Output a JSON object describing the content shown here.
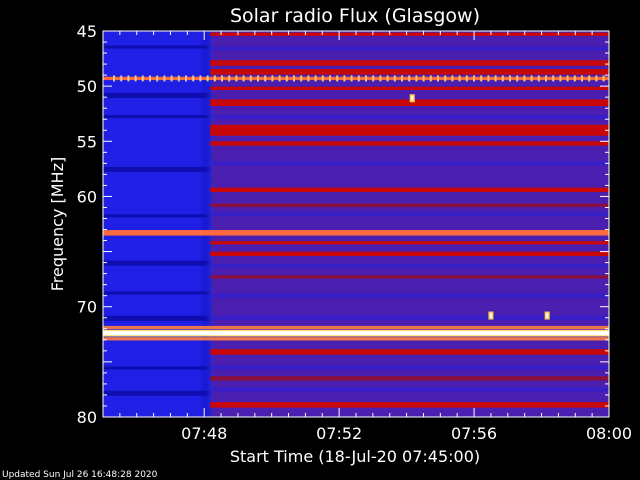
{
  "chart_data": {
    "type": "heatmap",
    "title": "Solar radio Flux (Glasgow)",
    "xlabel": "Start Time (18-Jul-20 07:45:00)",
    "ylabel": "Frequency [MHz]",
    "x_range": [
      "07:45",
      "08:00"
    ],
    "y_range_mhz": [
      45,
      80
    ],
    "y_reversed": true,
    "x_tick_labels": [
      "07:48",
      "07:52",
      "07:56",
      "08:00"
    ],
    "y_tick_labels": [
      "45",
      "50",
      "55",
      "60",
      "70",
      "80"
    ],
    "colorscale": [
      "#000080",
      "#1f1fe6",
      "#4a1fb0",
      "#8a0f3c",
      "#c00000",
      "#ff5030",
      "#ffd060",
      "#ffffff"
    ],
    "activity_onset_time": "07:48",
    "emission_bands_mhz": [
      {
        "center": 45.3,
        "width": 0.3,
        "level": "moderate"
      },
      {
        "center": 47.9,
        "width": 0.5,
        "level": "moderate"
      },
      {
        "center": 48.7,
        "width": 0.5,
        "level": "moderate"
      },
      {
        "center": 49.3,
        "width": 0.3,
        "level": "high"
      },
      {
        "center": 50.2,
        "width": 0.3,
        "level": "moderate"
      },
      {
        "center": 51.5,
        "width": 0.6,
        "level": "moderate"
      },
      {
        "center": 54.0,
        "width": 1.0,
        "level": "moderate"
      },
      {
        "center": 55.2,
        "width": 0.4,
        "level": "moderate"
      },
      {
        "center": 59.4,
        "width": 0.4,
        "level": "moderate"
      },
      {
        "center": 60.8,
        "width": 0.3,
        "level": "low"
      },
      {
        "center": 63.3,
        "width": 0.5,
        "level": "high"
      },
      {
        "center": 64.2,
        "width": 0.3,
        "level": "moderate"
      },
      {
        "center": 65.2,
        "width": 0.4,
        "level": "moderate"
      },
      {
        "center": 67.3,
        "width": 0.3,
        "level": "low"
      },
      {
        "center": 72.4,
        "width": 0.6,
        "level": "very_high"
      },
      {
        "center": 74.1,
        "width": 0.5,
        "level": "moderate"
      },
      {
        "center": 76.5,
        "width": 0.4,
        "level": "low"
      },
      {
        "center": 78.9,
        "width": 0.5,
        "level": "moderate"
      }
    ],
    "bursts": [
      {
        "time": "07:54:10",
        "freq_mhz": 51.1
      },
      {
        "time": "07:56:30",
        "freq_mhz": 70.8
      },
      {
        "time": "07:58:10",
        "freq_mhz": 70.8
      }
    ]
  },
  "footer": {
    "updated": "Updated Sun Jul 26 16:48:28 2020"
  }
}
